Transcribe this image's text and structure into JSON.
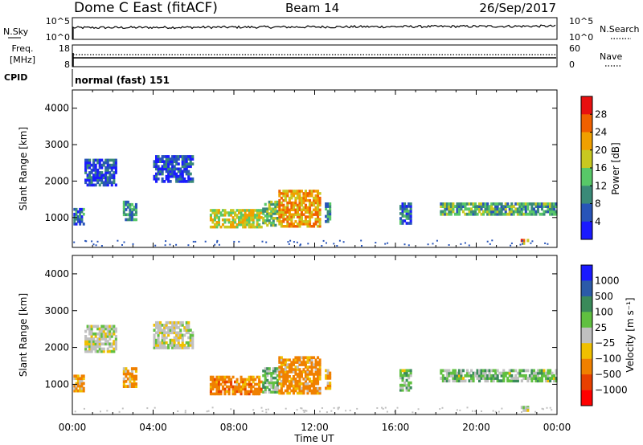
{
  "header": {
    "title": "Dome C East (fitACF)",
    "beam": "Beam 14",
    "date": "26/Sep/2017"
  },
  "top_panels": {
    "nsky": {
      "label": "N.Sky",
      "right_label": "N.Search",
      "left_ticks": [
        "10^5",
        "10^0"
      ],
      "right_ticks": [
        "10^5",
        "10^0"
      ]
    },
    "freq": {
      "label_line1": "Freq.",
      "label_line2": "[MHz]",
      "right_label": "Nave",
      "left_ticks": [
        "18",
        "8"
      ],
      "right_ticks": [
        "60",
        "0"
      ]
    },
    "cpid": {
      "label": "CPID",
      "text": "normal (fast) 151"
    }
  },
  "chart_data": [
    {
      "type": "heatmap",
      "name_key": "power",
      "ylabel": "Slant Range [km]",
      "y_ticks": [
        1000,
        2000,
        3000,
        4000
      ],
      "ylim": [
        180,
        4500
      ],
      "xlim_hours": [
        0,
        24
      ],
      "colorbar_label": "Power [dB]",
      "colorbar_ticks": [
        4,
        8,
        12,
        16,
        20,
        24,
        28
      ],
      "colorbar_colors": [
        "#1a1aff",
        "#2854b8",
        "#3a8a78",
        "#58c868",
        "#c8c820",
        "#f0a000",
        "#f06000",
        "#e81010"
      ],
      "colorbar_range": [
        0,
        32
      ],
      "regions": [
        {
          "t0": 0.05,
          "t1": 0.6,
          "r0": 780,
          "r1": 1250,
          "value": 8
        },
        {
          "t0": 0.6,
          "t1": 2.2,
          "r0": 1850,
          "r1": 2600,
          "value": 5
        },
        {
          "t0": 2.5,
          "t1": 3.2,
          "r0": 900,
          "r1": 1450,
          "value": 10
        },
        {
          "t0": 4.0,
          "t1": 6.0,
          "r0": 1950,
          "r1": 2700,
          "value": 5
        },
        {
          "t0": 6.8,
          "t1": 9.4,
          "r0": 700,
          "r1": 1220,
          "value": 18
        },
        {
          "t0": 9.4,
          "t1": 10.2,
          "r0": 750,
          "r1": 1450,
          "value": 14
        },
        {
          "t0": 10.2,
          "t1": 12.3,
          "r0": 720,
          "r1": 1750,
          "value": 22
        },
        {
          "t0": 12.5,
          "t1": 12.8,
          "r0": 850,
          "r1": 1400,
          "value": 10
        },
        {
          "t0": 16.2,
          "t1": 16.8,
          "r0": 800,
          "r1": 1400,
          "value": 8
        },
        {
          "t0": 18.2,
          "t1": 24,
          "r0": 1050,
          "r1": 1400,
          "value": 12
        },
        {
          "t0": 22.2,
          "t1": 22.6,
          "r0": 250,
          "r1": 400,
          "value": 24
        }
      ]
    },
    {
      "type": "heatmap",
      "name_key": "velocity",
      "ylabel": "Slant Range [km]",
      "xlabel": "Time UT",
      "x_ticks": [
        "00:00",
        "04:00",
        "08:00",
        "12:00",
        "16:00",
        "20:00",
        "00:00"
      ],
      "y_ticks": [
        1000,
        2000,
        3000,
        4000
      ],
      "ylim": [
        180,
        4500
      ],
      "xlim_hours": [
        0,
        24
      ],
      "colorbar_label": "Velocity [m s⁻¹]",
      "colorbar_ticks": [
        "1000",
        "500",
        "100",
        "25",
        "−25",
        "−100",
        "−500",
        "−1000"
      ],
      "colorbar_colors": [
        "#1a1aff",
        "#2b5aa8",
        "#3a8a5a",
        "#60c040",
        "#c0c0c0",
        "#f0c000",
        "#f08000",
        "#e84000",
        "#ff0000"
      ],
      "regions": [
        {
          "t0": 0.05,
          "t1": 0.6,
          "r0": 780,
          "r1": 1250,
          "value": -100
        },
        {
          "t0": 0.6,
          "t1": 2.2,
          "r0": 1850,
          "r1": 2600,
          "value": 0
        },
        {
          "t0": 2.5,
          "t1": 3.2,
          "r0": 900,
          "r1": 1450,
          "value": -100
        },
        {
          "t0": 4.0,
          "t1": 6.0,
          "r0": 1950,
          "r1": 2700,
          "value": 0
        },
        {
          "t0": 6.8,
          "t1": 9.4,
          "r0": 700,
          "r1": 1220,
          "value": -300
        },
        {
          "t0": 9.4,
          "t1": 10.2,
          "r0": 750,
          "r1": 1450,
          "value": 60
        },
        {
          "t0": 10.2,
          "t1": 12.3,
          "r0": 720,
          "r1": 1750,
          "value": -200
        },
        {
          "t0": 12.5,
          "t1": 12.8,
          "r0": 850,
          "r1": 1400,
          "value": -100
        },
        {
          "t0": 16.2,
          "t1": 16.8,
          "r0": 800,
          "r1": 1400,
          "value": 50
        },
        {
          "t0": 18.2,
          "t1": 24,
          "r0": 1050,
          "r1": 1400,
          "value": 60
        },
        {
          "t0": 22.2,
          "t1": 22.6,
          "r0": 250,
          "r1": 400,
          "value": 0
        }
      ]
    }
  ]
}
